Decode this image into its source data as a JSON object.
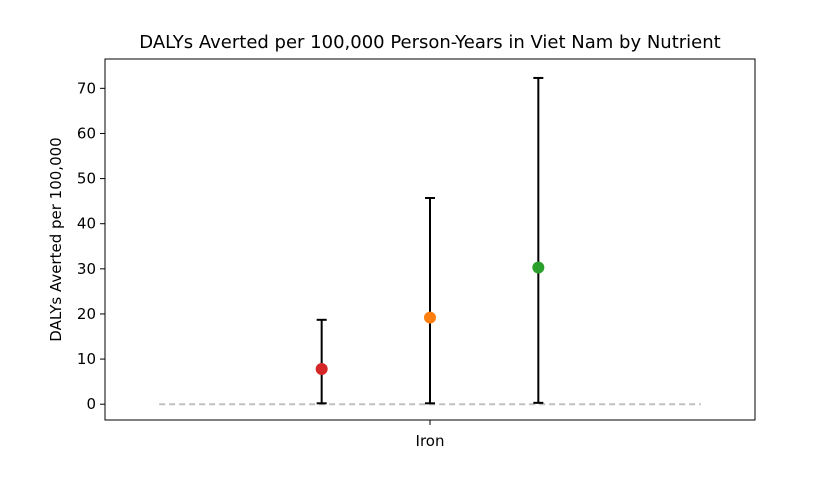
{
  "chart_data": {
    "type": "scatter",
    "title": "DALYs Averted per 100,000 Person-Years in Viet Nam by Nutrient",
    "xlabel": "",
    "ylabel": "DALYs Averted per 100,000",
    "categories": [
      "Iron"
    ],
    "ylim": [
      -3.5,
      76.5
    ],
    "yticks": [
      0,
      10,
      20,
      30,
      40,
      50,
      60,
      70
    ],
    "grid": false,
    "legend": "none",
    "baseline": {
      "value": 0,
      "style": "dashed",
      "color": "#c0c0c0"
    },
    "points": [
      {
        "category": "Iron",
        "offset": -0.2,
        "value": 7.8,
        "lower": 0.2,
        "upper": 18.7,
        "color": "#d62728"
      },
      {
        "category": "Iron",
        "offset": 0.0,
        "value": 19.2,
        "lower": 0.2,
        "upper": 45.7,
        "color": "#ff7f0e"
      },
      {
        "category": "Iron",
        "offset": 0.2,
        "value": 30.3,
        "lower": 0.3,
        "upper": 72.3,
        "color": "#2ca02c"
      }
    ]
  }
}
